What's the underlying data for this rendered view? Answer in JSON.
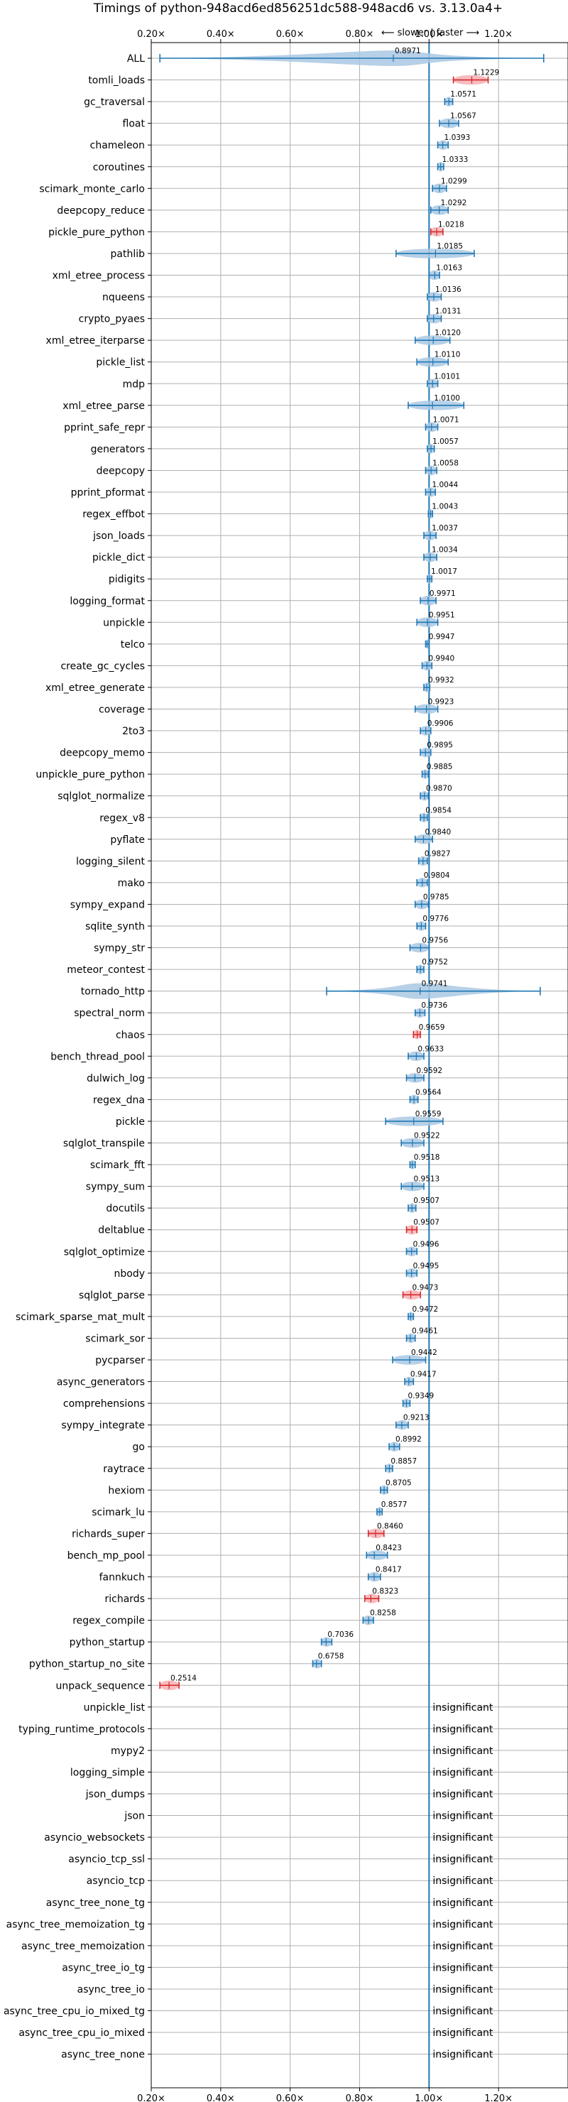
{
  "chart_data": {
    "type": "violin",
    "title": "Timings of python-948acd6ed856251dc588-948acd6 vs. 3.13.0a4+",
    "subtitle": "⟵ slower | faster ⟶",
    "xlabel": "",
    "ylabel": "",
    "xlim": [
      0.2,
      1.4
    ],
    "x_ticks": [
      0.2,
      0.4,
      0.6,
      0.8,
      1.0,
      1.2
    ],
    "x_tick_labels": [
      "0.20×",
      "0.40×",
      "0.60×",
      "0.80×",
      "1.00×",
      "1.20×"
    ],
    "reference_line": 1.0,
    "grid": true,
    "colors": {
      "normal": "#1f77b4",
      "normal_fill": "#a9c8e3",
      "highlight": "#d62728",
      "highlight_fill": "#f4b0b4",
      "grid": "#b0b0b0"
    },
    "insignificant_label": "insignificant",
    "benchmarks": [
      {
        "name": "ALL",
        "value": 0.8971,
        "range": [
          0.225,
          1.33
        ],
        "spread": "wide",
        "highlight": false
      },
      {
        "name": "tomli_loads",
        "value": 1.1229,
        "range": [
          1.07,
          1.17
        ],
        "highlight": true
      },
      {
        "name": "gc_traversal",
        "value": 1.0571,
        "range": [
          1.045,
          1.068
        ],
        "highlight": false
      },
      {
        "name": "float",
        "value": 1.0567,
        "range": [
          1.03,
          1.085
        ],
        "highlight": false
      },
      {
        "name": "chameleon",
        "value": 1.0393,
        "range": [
          1.025,
          1.055
        ],
        "highlight": false
      },
      {
        "name": "coroutines",
        "value": 1.0333,
        "range": [
          1.025,
          1.042
        ],
        "highlight": false
      },
      {
        "name": "scimark_monte_carlo",
        "value": 1.0299,
        "range": [
          1.01,
          1.05
        ],
        "highlight": false
      },
      {
        "name": "deepcopy_reduce",
        "value": 1.0292,
        "range": [
          1.005,
          1.055
        ],
        "highlight": false
      },
      {
        "name": "pickle_pure_python",
        "value": 1.0218,
        "range": [
          1.005,
          1.04
        ],
        "highlight": true
      },
      {
        "name": "pathlib",
        "value": 1.0185,
        "range": [
          0.905,
          1.13
        ],
        "highlight": false
      },
      {
        "name": "xml_etree_process",
        "value": 1.0163,
        "range": [
          1.0,
          1.03
        ],
        "highlight": false
      },
      {
        "name": "nqueens",
        "value": 1.0136,
        "range": [
          0.995,
          1.035
        ],
        "highlight": false
      },
      {
        "name": "crypto_pyaes",
        "value": 1.0131,
        "range": [
          0.995,
          1.035
        ],
        "highlight": false
      },
      {
        "name": "xml_etree_iterparse",
        "value": 1.012,
        "range": [
          0.96,
          1.06
        ],
        "highlight": false
      },
      {
        "name": "pickle_list",
        "value": 1.011,
        "range": [
          0.965,
          1.055
        ],
        "highlight": false
      },
      {
        "name": "mdp",
        "value": 1.0101,
        "range": [
          0.995,
          1.025
        ],
        "highlight": false
      },
      {
        "name": "xml_etree_parse",
        "value": 1.01,
        "range": [
          0.94,
          1.1
        ],
        "highlight": false
      },
      {
        "name": "pprint_safe_repr",
        "value": 1.0071,
        "range": [
          0.99,
          1.025
        ],
        "highlight": false
      },
      {
        "name": "generators",
        "value": 1.0057,
        "range": [
          0.995,
          1.015
        ],
        "highlight": false
      },
      {
        "name": "deepcopy",
        "value": 1.0058,
        "range": [
          0.99,
          1.022
        ],
        "highlight": false
      },
      {
        "name": "pprint_pformat",
        "value": 1.0044,
        "range": [
          0.99,
          1.018
        ],
        "highlight": false
      },
      {
        "name": "regex_effbot",
        "value": 1.0043,
        "range": [
          0.998,
          1.01
        ],
        "highlight": false
      },
      {
        "name": "json_loads",
        "value": 1.0037,
        "range": [
          0.985,
          1.02
        ],
        "highlight": false
      },
      {
        "name": "pickle_dict",
        "value": 1.0034,
        "range": [
          0.985,
          1.022
        ],
        "highlight": false
      },
      {
        "name": "pidigits",
        "value": 1.0017,
        "range": [
          0.995,
          1.008
        ],
        "highlight": false
      },
      {
        "name": "logging_format",
        "value": 0.9971,
        "range": [
          0.975,
          1.02
        ],
        "highlight": false
      },
      {
        "name": "unpickle",
        "value": 0.9951,
        "range": [
          0.965,
          1.025
        ],
        "highlight": false
      },
      {
        "name": "telco",
        "value": 0.9947,
        "range": [
          0.99,
          1.0
        ],
        "highlight": false
      },
      {
        "name": "create_gc_cycles",
        "value": 0.994,
        "range": [
          0.98,
          1.008
        ],
        "highlight": false
      },
      {
        "name": "xml_etree_generate",
        "value": 0.9932,
        "range": [
          0.985,
          1.002
        ],
        "highlight": false
      },
      {
        "name": "coverage",
        "value": 0.9923,
        "range": [
          0.96,
          1.025
        ],
        "highlight": false
      },
      {
        "name": "2to3",
        "value": 0.9906,
        "range": [
          0.975,
          1.005
        ],
        "highlight": false
      },
      {
        "name": "deepcopy_memo",
        "value": 0.9895,
        "range": [
          0.975,
          1.005
        ],
        "highlight": false
      },
      {
        "name": "unpickle_pure_python",
        "value": 0.9885,
        "range": [
          0.98,
          0.998
        ],
        "highlight": false
      },
      {
        "name": "sqlglot_normalize",
        "value": 0.987,
        "range": [
          0.975,
          0.998
        ],
        "highlight": false
      },
      {
        "name": "regex_v8",
        "value": 0.9854,
        "range": [
          0.975,
          0.995
        ],
        "highlight": false
      },
      {
        "name": "pyflate",
        "value": 0.984,
        "range": [
          0.96,
          1.01
        ],
        "highlight": false
      },
      {
        "name": "logging_silent",
        "value": 0.9827,
        "range": [
          0.97,
          0.995
        ],
        "highlight": false
      },
      {
        "name": "mako",
        "value": 0.9804,
        "range": [
          0.965,
          0.995
        ],
        "highlight": false
      },
      {
        "name": "sympy_expand",
        "value": 0.9785,
        "range": [
          0.96,
          0.998
        ],
        "highlight": false
      },
      {
        "name": "sqlite_synth",
        "value": 0.9776,
        "range": [
          0.965,
          0.99
        ],
        "highlight": false
      },
      {
        "name": "sympy_str",
        "value": 0.9756,
        "range": [
          0.945,
          1.0
        ],
        "highlight": false
      },
      {
        "name": "meteor_contest",
        "value": 0.9752,
        "range": [
          0.965,
          0.985
        ],
        "highlight": false
      },
      {
        "name": "tornado_http",
        "value": 0.9741,
        "range": [
          0.705,
          1.32
        ],
        "spread": "wide",
        "highlight": false
      },
      {
        "name": "spectral_norm",
        "value": 0.9736,
        "range": [
          0.96,
          0.988
        ],
        "highlight": false
      },
      {
        "name": "chaos",
        "value": 0.9659,
        "range": [
          0.955,
          0.975
        ],
        "highlight": true
      },
      {
        "name": "bench_thread_pool",
        "value": 0.9633,
        "range": [
          0.94,
          0.985
        ],
        "highlight": false
      },
      {
        "name": "dulwich_log",
        "value": 0.9592,
        "range": [
          0.935,
          0.985
        ],
        "highlight": false
      },
      {
        "name": "regex_dna",
        "value": 0.9564,
        "range": [
          0.945,
          0.968
        ],
        "highlight": false
      },
      {
        "name": "pickle",
        "value": 0.9559,
        "range": [
          0.875,
          1.04
        ],
        "highlight": false
      },
      {
        "name": "sqlglot_transpile",
        "value": 0.9522,
        "range": [
          0.92,
          0.985
        ],
        "highlight": false
      },
      {
        "name": "scimark_fft",
        "value": 0.9518,
        "range": [
          0.945,
          0.96
        ],
        "highlight": false
      },
      {
        "name": "sympy_sum",
        "value": 0.9513,
        "range": [
          0.92,
          0.985
        ],
        "highlight": false
      },
      {
        "name": "docutils",
        "value": 0.9507,
        "range": [
          0.94,
          0.962
        ],
        "highlight": false
      },
      {
        "name": "deltablue",
        "value": 0.9507,
        "range": [
          0.935,
          0.965
        ],
        "highlight": true
      },
      {
        "name": "sqlglot_optimize",
        "value": 0.9496,
        "range": [
          0.935,
          0.965
        ],
        "highlight": false
      },
      {
        "name": "nbody",
        "value": 0.9495,
        "range": [
          0.935,
          0.965
        ],
        "highlight": false
      },
      {
        "name": "sqlglot_parse",
        "value": 0.9473,
        "range": [
          0.925,
          0.975
        ],
        "highlight": true
      },
      {
        "name": "scimark_sparse_mat_mult",
        "value": 0.9472,
        "range": [
          0.94,
          0.955
        ],
        "highlight": false
      },
      {
        "name": "scimark_sor",
        "value": 0.9461,
        "range": [
          0.935,
          0.96
        ],
        "highlight": false
      },
      {
        "name": "pycparser",
        "value": 0.9442,
        "range": [
          0.895,
          0.99
        ],
        "highlight": false
      },
      {
        "name": "async_generators",
        "value": 0.9417,
        "range": [
          0.93,
          0.955
        ],
        "highlight": false
      },
      {
        "name": "comprehensions",
        "value": 0.9349,
        "range": [
          0.925,
          0.945
        ],
        "highlight": false
      },
      {
        "name": "sympy_integrate",
        "value": 0.9213,
        "range": [
          0.905,
          0.94
        ],
        "highlight": false
      },
      {
        "name": "go",
        "value": 0.8992,
        "range": [
          0.885,
          0.915
        ],
        "highlight": false
      },
      {
        "name": "raytrace",
        "value": 0.8857,
        "range": [
          0.875,
          0.895
        ],
        "highlight": false
      },
      {
        "name": "hexiom",
        "value": 0.8705,
        "range": [
          0.86,
          0.88
        ],
        "highlight": false
      },
      {
        "name": "scimark_lu",
        "value": 0.8577,
        "range": [
          0.85,
          0.865
        ],
        "highlight": false
      },
      {
        "name": "richards_super",
        "value": 0.846,
        "range": [
          0.825,
          0.87
        ],
        "highlight": true
      },
      {
        "name": "bench_mp_pool",
        "value": 0.8423,
        "range": [
          0.82,
          0.88
        ],
        "highlight": false
      },
      {
        "name": "fannkuch",
        "value": 0.8417,
        "range": [
          0.825,
          0.86
        ],
        "highlight": false
      },
      {
        "name": "richards",
        "value": 0.8323,
        "range": [
          0.815,
          0.855
        ],
        "highlight": true
      },
      {
        "name": "regex_compile",
        "value": 0.8258,
        "range": [
          0.81,
          0.84
        ],
        "highlight": false
      },
      {
        "name": "python_startup",
        "value": 0.7036,
        "range": [
          0.69,
          0.72
        ],
        "highlight": false
      },
      {
        "name": "python_startup_no_site",
        "value": 0.6758,
        "range": [
          0.665,
          0.69
        ],
        "highlight": false
      },
      {
        "name": "unpack_sequence",
        "value": 0.2514,
        "range": [
          0.225,
          0.28
        ],
        "highlight": true
      },
      {
        "name": "unpickle_list",
        "value": null,
        "insignificant": true
      },
      {
        "name": "typing_runtime_protocols",
        "value": null,
        "insignificant": true
      },
      {
        "name": "mypy2",
        "value": null,
        "insignificant": true
      },
      {
        "name": "logging_simple",
        "value": null,
        "insignificant": true
      },
      {
        "name": "json_dumps",
        "value": null,
        "insignificant": true
      },
      {
        "name": "json",
        "value": null,
        "insignificant": true
      },
      {
        "name": "asyncio_websockets",
        "value": null,
        "insignificant": true
      },
      {
        "name": "asyncio_tcp_ssl",
        "value": null,
        "insignificant": true
      },
      {
        "name": "asyncio_tcp",
        "value": null,
        "insignificant": true
      },
      {
        "name": "async_tree_none_tg",
        "value": null,
        "insignificant": true
      },
      {
        "name": "async_tree_memoization_tg",
        "value": null,
        "insignificant": true
      },
      {
        "name": "async_tree_memoization",
        "value": null,
        "insignificant": true
      },
      {
        "name": "async_tree_io_tg",
        "value": null,
        "insignificant": true
      },
      {
        "name": "async_tree_io",
        "value": null,
        "insignificant": true
      },
      {
        "name": "async_tree_cpu_io_mixed_tg",
        "value": null,
        "insignificant": true
      },
      {
        "name": "async_tree_cpu_io_mixed",
        "value": null,
        "insignificant": true
      },
      {
        "name": "async_tree_none",
        "value": null,
        "insignificant": true
      }
    ]
  }
}
